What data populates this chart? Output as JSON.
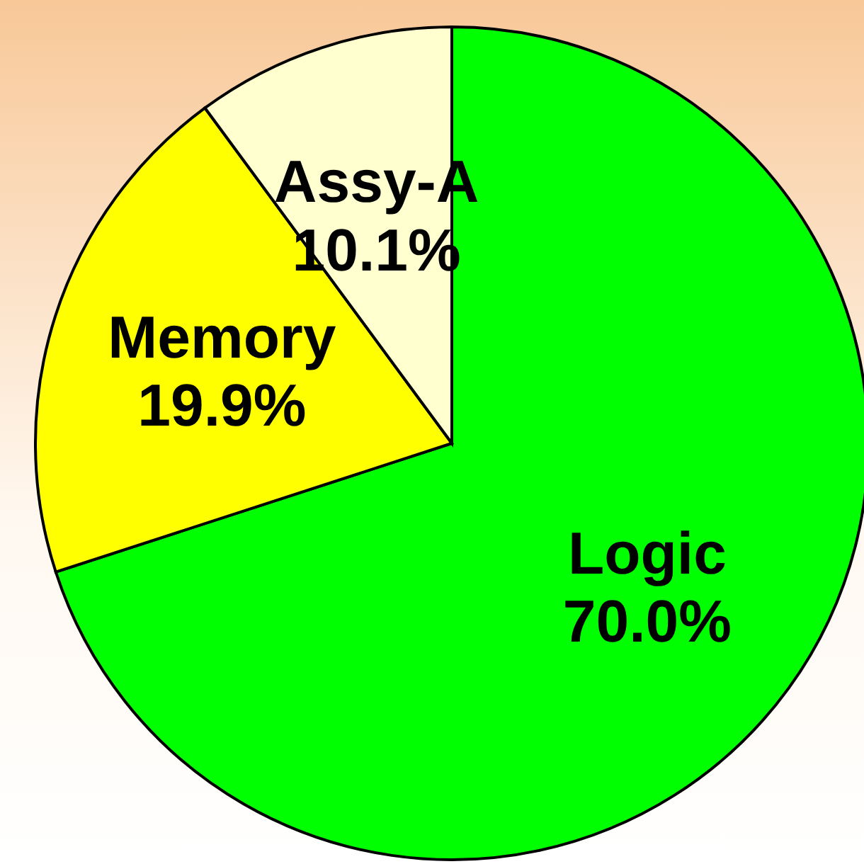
{
  "chart_data": {
    "type": "pie",
    "categories": [
      "Logic",
      "Memory",
      "Assy-A"
    ],
    "values": [
      70.0,
      19.9,
      10.1
    ],
    "value_labels": [
      "70.0%",
      "19.9%",
      "10.1%"
    ],
    "colors": [
      "#00ff00",
      "#ffff00",
      "#ffffd0"
    ],
    "legend": false
  }
}
